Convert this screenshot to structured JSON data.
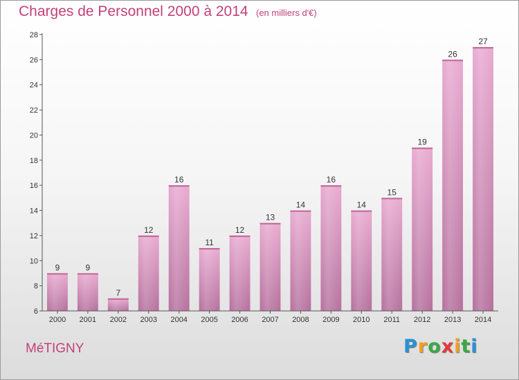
{
  "title": "Charges de Personnel 2000 à 2014",
  "subtitle": "(en milliers d'€)",
  "place": "MéTIGNY",
  "logo": {
    "letters": [
      "P",
      "r",
      "o",
      "x",
      "i",
      "t",
      "i"
    ],
    "colors": [
      "#2b8fd6",
      "#f0a020",
      "#3aa845",
      "#e23a3a",
      "#f0a020",
      "#3aa845",
      "#2b8fd6"
    ]
  },
  "chart_data": {
    "type": "bar",
    "title": "Charges de Personnel 2000 à 2014",
    "subtitle": "(en milliers d'€)",
    "categories": [
      "2000",
      "2001",
      "2002",
      "2003",
      "2004",
      "2005",
      "2006",
      "2007",
      "2008",
      "2009",
      "2010",
      "2011",
      "2012",
      "2013",
      "2014"
    ],
    "values": [
      9,
      9,
      7,
      12,
      16,
      11,
      12,
      13,
      14,
      16,
      14,
      15,
      19,
      26,
      27
    ],
    "ylim": [
      6,
      28
    ],
    "yticks": [
      6,
      8,
      10,
      12,
      14,
      16,
      18,
      20,
      22,
      24,
      26,
      28
    ],
    "grid": false,
    "bar_color": "#d97fb3"
  }
}
